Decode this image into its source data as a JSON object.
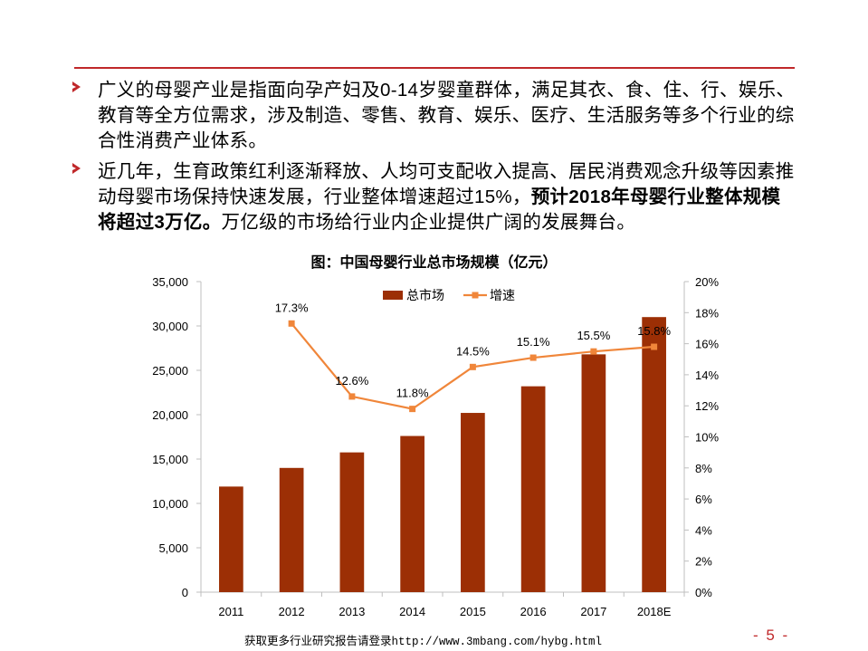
{
  "bullets": [
    {
      "text": "广义的母婴产业是指面向孕产妇及0-14岁婴童群体，满足其衣、食、住、行、娱乐、教育等全方位需求，涉及制造、零售、教育、娱乐、医疗、生活服务等多个行业的综合性消费产业体系。"
    },
    {
      "text_pre": "近几年，生育政策红利逐渐释放、人均可支配收入提高、居民消费观念升级等因素推动母婴市场保持快速发展，行业整体增速超过15%，",
      "text_bold": "预计2018年母婴行业整体规模将超过3万亿。",
      "text_post": "万亿级的市场给行业内企业提供广阔的发展舞台。"
    }
  ],
  "chart_data": {
    "type": "bar",
    "title": "图：中国母婴行业总市场规模（亿元）",
    "categories": [
      "2011",
      "2012",
      "2013",
      "2014",
      "2015",
      "2016",
      "2017",
      "2018E"
    ],
    "series": [
      {
        "name": "总市场",
        "type": "bar",
        "axis": "left",
        "color": "#9c2f05",
        "values": [
          11900,
          14000,
          15750,
          17600,
          20200,
          23200,
          26800,
          31000
        ]
      },
      {
        "name": "增速",
        "type": "line",
        "axis": "right",
        "color": "#f0863a",
        "values": [
          null,
          17.3,
          12.6,
          11.8,
          14.5,
          15.1,
          15.5,
          15.8
        ],
        "labels": [
          "",
          "17.3%",
          "12.6%",
          "11.8%",
          "14.5%",
          "15.1%",
          "15.5%",
          "15.8%"
        ]
      }
    ],
    "y_left": {
      "min": 0,
      "max": 35000,
      "ticks": [
        "0",
        "5,000",
        "10,000",
        "15,000",
        "20,000",
        "25,000",
        "30,000",
        "35,000"
      ]
    },
    "y_right": {
      "min": 0,
      "max": 20,
      "ticks": [
        "0%",
        "2%",
        "4%",
        "6%",
        "8%",
        "10%",
        "12%",
        "14%",
        "16%",
        "18%",
        "20%"
      ]
    },
    "legend_position": "top-center",
    "grid": false
  },
  "footer": {
    "prefix": "获取更多行业研究报告请登录",
    "url": "http://www.3mbang.com/hybg.html"
  },
  "page_number": "- 5 -"
}
